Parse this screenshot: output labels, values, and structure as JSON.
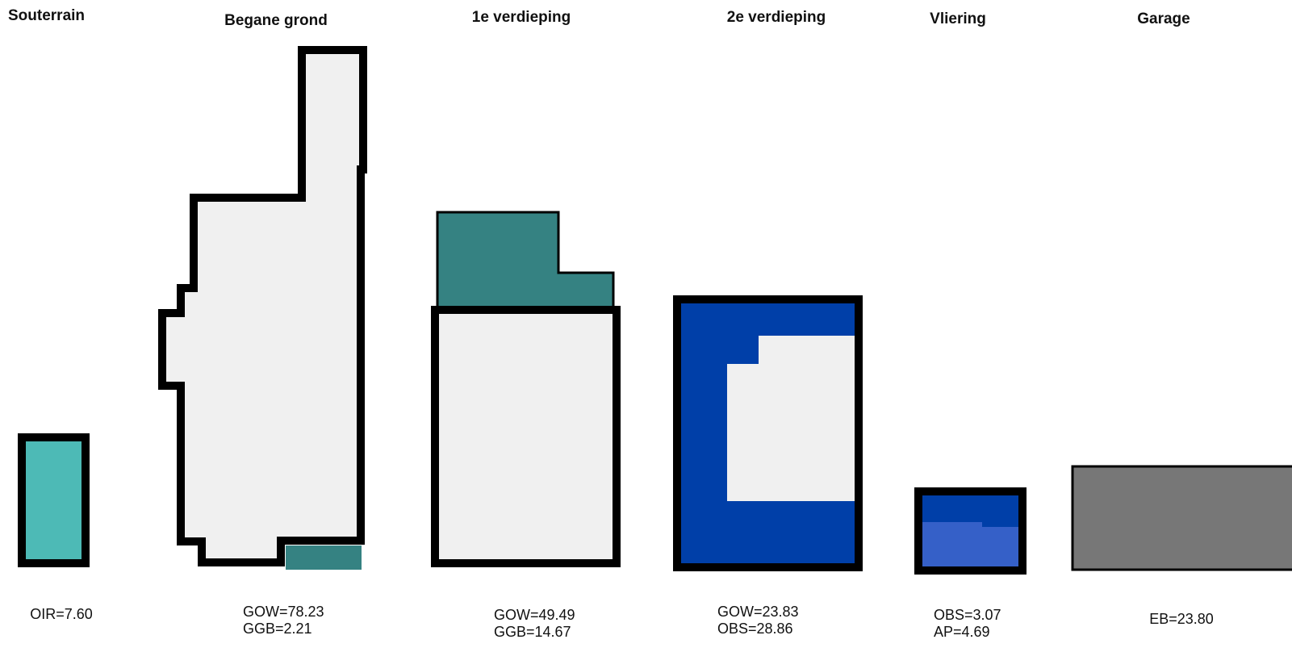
{
  "colors": {
    "background": "#ffffff",
    "outline": "#000000",
    "light_gray": "#f0f0f0",
    "teal_light": "#4dbab6",
    "teal_dark": "#358282",
    "blue_dark": "#003fa8",
    "blue_mid": "#3560c8",
    "gray": "#777777"
  },
  "floors": [
    {
      "id": "souterrain",
      "title": "Souterrain",
      "areas": [
        "OIR=7.60"
      ]
    },
    {
      "id": "begane-grond",
      "title": "Begane grond",
      "areas": [
        "GOW=78.23",
        "GGB=2.21"
      ]
    },
    {
      "id": "verdieping-1",
      "title": "1e verdieping",
      "areas": [
        "GOW=49.49",
        "GGB=14.67"
      ]
    },
    {
      "id": "verdieping-2",
      "title": "2e verdieping",
      "areas": [
        "GOW=23.83",
        "OBS=28.86"
      ]
    },
    {
      "id": "vliering",
      "title": "Vliering",
      "areas": [
        "OBS=3.07",
        "AP=4.69"
      ]
    },
    {
      "id": "garage",
      "title": "Garage",
      "areas": [
        "EB=23.80"
      ]
    }
  ]
}
